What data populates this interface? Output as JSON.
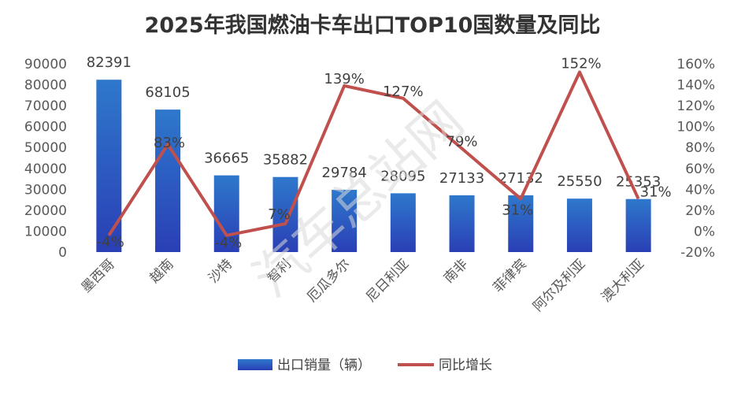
{
  "chart_data": {
    "type": "bar",
    "title": "2025年我国燃油卡车出口TOP10国数量及同比",
    "categories": [
      "墨西哥",
      "越南",
      "沙特",
      "智利",
      "厄瓜多尔",
      "尼日利亚",
      "南非",
      "菲律宾",
      "阿尔及利亚",
      "澳大利亚"
    ],
    "series": [
      {
        "name": "出口销量（辆）",
        "type": "bar",
        "axis": "left",
        "values": [
          82391,
          68105,
          36665,
          35882,
          29784,
          28095,
          27133,
          27132,
          25550,
          25353
        ],
        "labels": [
          "82391",
          "68105",
          "36665",
          "35882",
          "29784",
          "28095",
          "27133",
          "27132",
          "25550",
          "25353"
        ]
      },
      {
        "name": "同比增长",
        "type": "line",
        "axis": "right",
        "values": [
          -4,
          83,
          -4,
          7,
          139,
          127,
          79,
          31,
          152,
          31
        ],
        "labels": [
          "-4%",
          "83%",
          "-4%",
          "7%",
          "139%",
          "127%",
          "79%",
          "31%",
          "152%",
          "31%"
        ]
      }
    ],
    "left_axis": {
      "min": 0,
      "max": 90000,
      "step": 10000,
      "ticks": [
        "0",
        "10000",
        "20000",
        "30000",
        "40000",
        "50000",
        "60000",
        "70000",
        "80000",
        "90000"
      ]
    },
    "right_axis": {
      "min": -20,
      "max": 160,
      "step": 20,
      "ticks": [
        "-20%",
        "0%",
        "20%",
        "40%",
        "60%",
        "80%",
        "100%",
        "120%",
        "140%",
        "160%"
      ]
    },
    "legend": {
      "position": "bottom",
      "items": [
        "出口销量（辆）",
        "同比增长"
      ]
    },
    "colors": {
      "bar_top": "#2e78cc",
      "bar_bottom": "#2a3fb5",
      "line": "#c0504d",
      "axis_text": "#595959"
    },
    "watermark": "汽车总站网"
  }
}
